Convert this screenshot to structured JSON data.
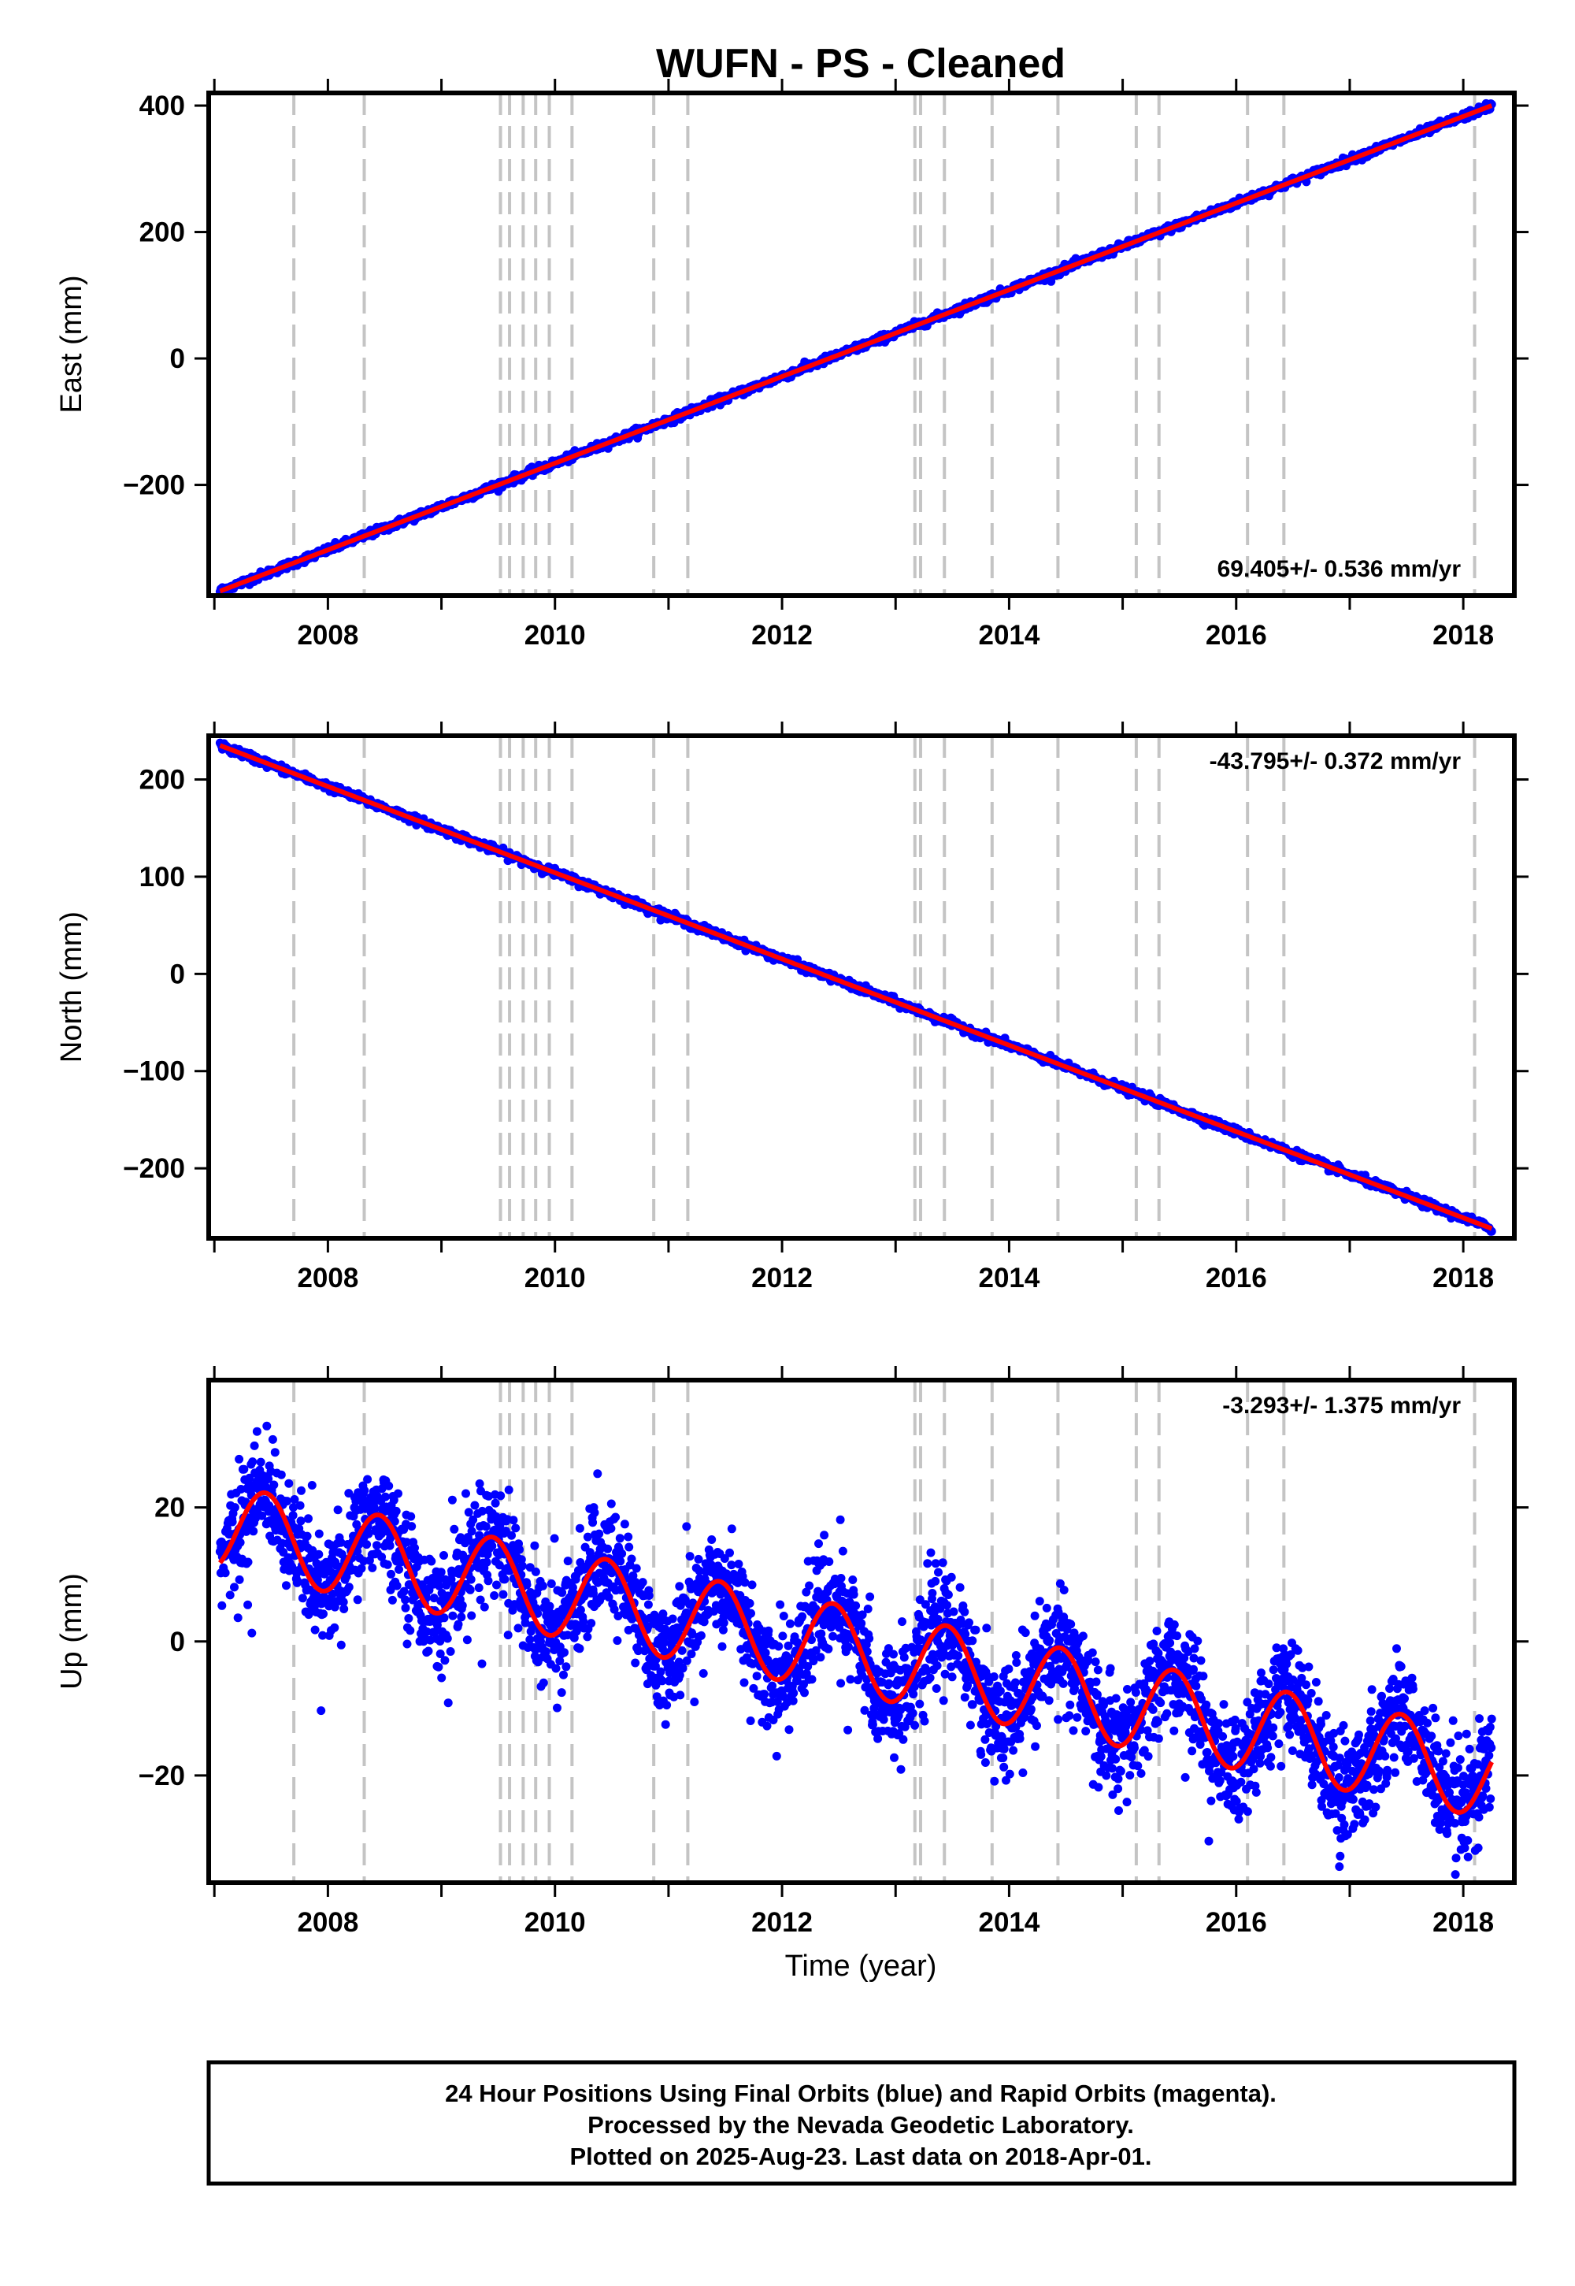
{
  "title": "WUFN  - PS - Cleaned",
  "colors": {
    "data": "#0000ff",
    "model": "#ff0000",
    "events": "#c4c4c4",
    "frame": "#000000"
  },
  "xlabel": "Time (year)",
  "x_tick_labels": [
    "2008",
    "2010",
    "2012",
    "2014",
    "2016",
    "2018"
  ],
  "footer": {
    "line1": "24 Hour Positions Using Final Orbits (blue) and Rapid Orbits (magenta).",
    "line2": "Processed by the Nevada Geodetic Laboratory.",
    "line3": "Plotted on 2025-Aug-23. Last data on 2018-Apr-01."
  },
  "chart_data": [
    {
      "type": "scatter",
      "ylabel": "East (mm)",
      "rate_label": "69.405+/- 0.536 mm/yr",
      "rate_position": "bottom-right",
      "xlim": [
        2006.95,
        2018.45
      ],
      "ylim": [
        -375,
        420
      ],
      "yticks": [
        -200,
        0,
        200,
        400
      ],
      "y_tick_labels": [
        "−200",
        "0",
        "200",
        "400"
      ],
      "x_start": 2007.05,
      "x_end": 2018.25,
      "y_start": -368,
      "y_end": 400,
      "seasonal_amplitude": 0,
      "noise_amplitude": 3,
      "event_lines_x": [
        2007.7,
        2008.32,
        2009.52,
        2009.6,
        2009.72,
        2009.83,
        2009.95,
        2010.15,
        2010.87,
        2011.17,
        2013.17,
        2013.22,
        2013.43,
        2013.85,
        2014.43,
        2015.12,
        2015.32,
        2016.1,
        2016.42,
        2018.1
      ]
    },
    {
      "type": "scatter",
      "ylabel": "North (mm)",
      "rate_label": "-43.795+/- 0.372 mm/yr",
      "rate_position": "top-right",
      "xlim": [
        2006.95,
        2018.45
      ],
      "ylim": [
        -272,
        245
      ],
      "yticks": [
        -200,
        -100,
        0,
        100,
        200
      ],
      "y_tick_labels": [
        "−200",
        "−100",
        "0",
        "100",
        "200"
      ],
      "x_start": 2007.05,
      "x_end": 2018.25,
      "y_start": 235,
      "y_end": -262,
      "seasonal_amplitude": 0,
      "noise_amplitude": 2,
      "event_lines_x": [
        2007.7,
        2008.32,
        2009.52,
        2009.6,
        2009.72,
        2009.83,
        2009.95,
        2010.15,
        2010.87,
        2011.17,
        2013.17,
        2013.22,
        2013.43,
        2013.85,
        2014.43,
        2015.12,
        2015.32,
        2016.1,
        2016.42,
        2018.1
      ]
    },
    {
      "type": "scatter",
      "ylabel": "Up (mm)",
      "rate_label": "-3.293+/- 1.375 mm/yr",
      "rate_position": "top-right",
      "xlim": [
        2006.95,
        2018.45
      ],
      "ylim": [
        -36,
        39
      ],
      "yticks": [
        -20,
        0,
        20
      ],
      "y_tick_labels": [
        "−20",
        "0",
        "20"
      ],
      "x_start": 2007.05,
      "x_end": 2018.25,
      "y_start": 17,
      "y_end": -20,
      "seasonal_amplitude": 6.5,
      "seasonal_phase_year": 2007.45,
      "noise_amplitude": 4,
      "event_lines_x": [
        2007.7,
        2008.32,
        2009.52,
        2009.6,
        2009.72,
        2009.83,
        2009.95,
        2010.15,
        2010.87,
        2011.17,
        2013.17,
        2013.22,
        2013.43,
        2013.85,
        2014.43,
        2015.12,
        2015.32,
        2016.1,
        2016.42,
        2018.1
      ]
    }
  ]
}
